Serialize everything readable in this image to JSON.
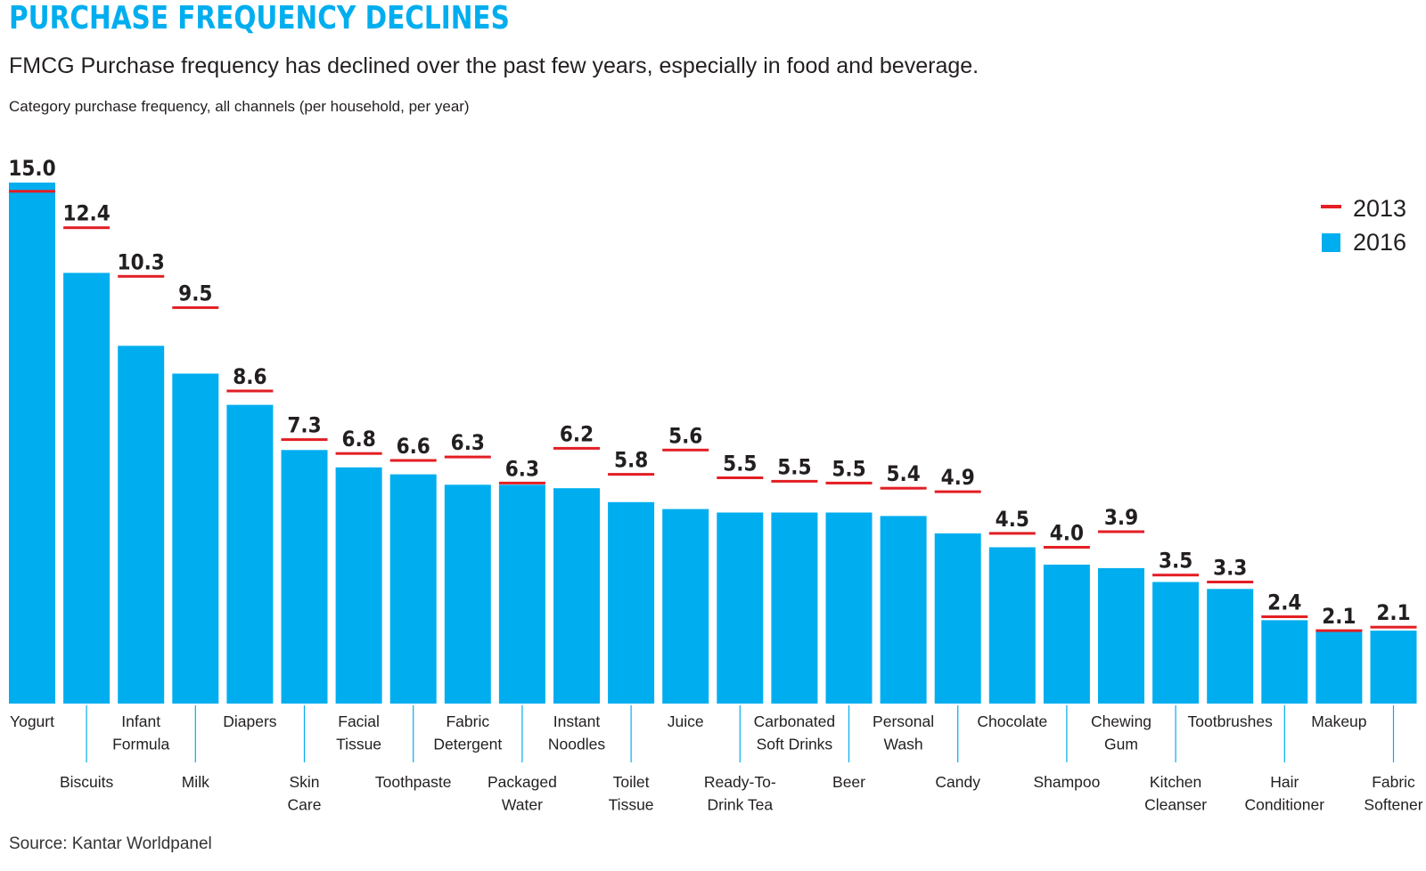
{
  "title": "PURCHASE FREQUENCY DECLINES",
  "subtitle": "FMCG Purchase frequency has declined over the past few years, especially in food and beverage.",
  "caption": "Category purchase frequency, all channels (per household, per year)",
  "source": "Source: Kantar Worldpanel",
  "colors": {
    "bar_2016": "#00aeef",
    "line_2013": "#e31e24",
    "text": "#231f20",
    "title": "#00aeef"
  },
  "chart_data": {
    "type": "bar",
    "title": "PURCHASE FREQUENCY DECLINES",
    "ylabel": "Category purchase frequency, all channels (per household, per year)",
    "xlabel": "",
    "ylim": [
      0,
      15.0
    ],
    "grid": false,
    "legend": "top-right",
    "categories": [
      [
        "Yogurt"
      ],
      [
        "Biscuits"
      ],
      [
        "Infant",
        "Formula"
      ],
      [
        "Milk"
      ],
      [
        "Diapers"
      ],
      [
        "Skin",
        "Care"
      ],
      [
        "Facial",
        "Tissue"
      ],
      [
        "Toothpaste"
      ],
      [
        "Fabric",
        "Detergent"
      ],
      [
        "Packaged",
        "Water"
      ],
      [
        "Instant",
        "Noodles"
      ],
      [
        "Toilet",
        "Tissue"
      ],
      [
        "Juice"
      ],
      [
        "Ready-To-",
        "Drink Tea"
      ],
      [
        "Carbonated",
        "Soft Drinks"
      ],
      [
        "Beer"
      ],
      [
        "Personal",
        "Wash"
      ],
      [
        "Candy"
      ],
      [
        "Chocolate"
      ],
      [
        "Shampoo"
      ],
      [
        "Chewing",
        "Gum"
      ],
      [
        "Kitchen",
        "Cleanser"
      ],
      [
        "Tootbrushes"
      ],
      [
        "Hair",
        "Conditioner"
      ],
      [
        "Makeup"
      ],
      [
        "Fabric",
        "Softener"
      ]
    ],
    "series": [
      {
        "name": "2016",
        "style": "bar",
        "values": [
          15.0,
          12.4,
          10.3,
          9.5,
          8.6,
          7.3,
          6.8,
          6.6,
          6.3,
          6.3,
          6.2,
          5.8,
          5.6,
          5.5,
          5.5,
          5.5,
          5.4,
          4.9,
          4.5,
          4.0,
          3.9,
          3.5,
          3.3,
          2.4,
          2.1,
          2.1
        ],
        "labels": [
          "15.0",
          "12.4",
          "10.3",
          "9.5",
          "8.6",
          "7.3",
          "6.8",
          "6.6",
          "6.3",
          "6.3",
          "6.2",
          "5.8",
          "5.6",
          "5.5",
          "5.5",
          "5.5",
          "5.4",
          "4.9",
          "4.5",
          "4.0",
          "3.9",
          "3.5",
          "3.3",
          "2.4",
          "2.1",
          "2.1"
        ]
      },
      {
        "name": "2013",
        "style": "marker-line",
        "values": [
          14.75,
          13.7,
          12.3,
          11.4,
          9.0,
          7.6,
          7.2,
          7.0,
          7.1,
          6.35,
          7.35,
          6.6,
          7.3,
          6.5,
          6.4,
          6.35,
          6.2,
          6.1,
          4.9,
          4.5,
          4.95,
          3.7,
          3.5,
          2.5,
          2.1,
          2.2
        ]
      }
    ]
  }
}
